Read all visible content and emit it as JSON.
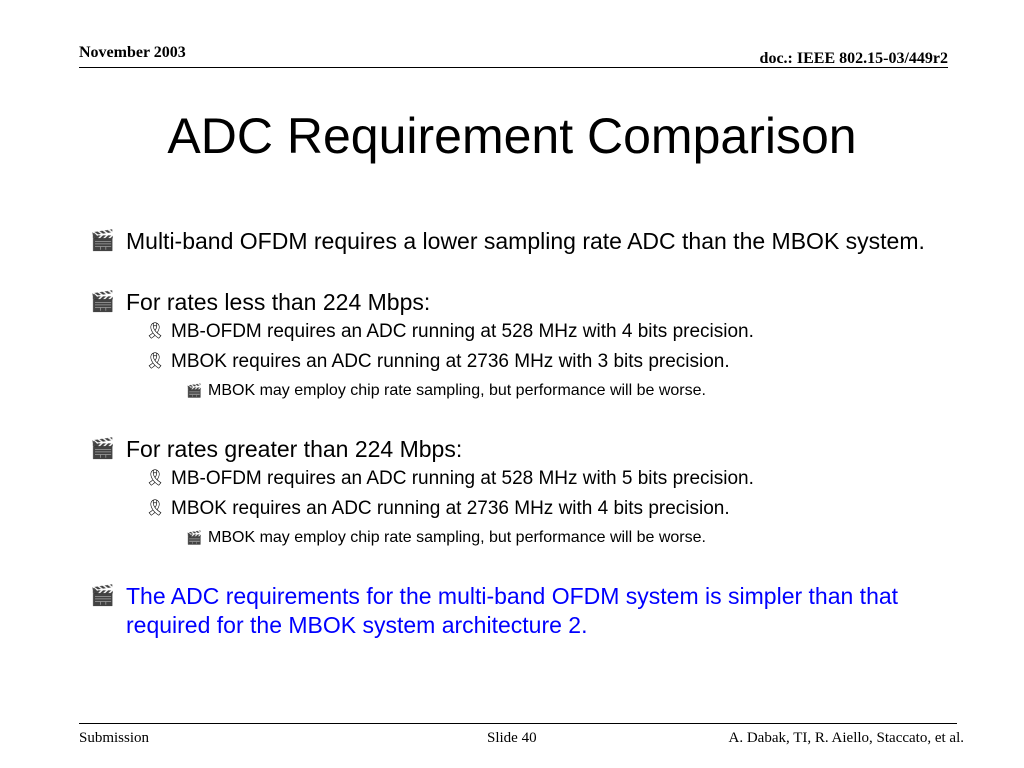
{
  "header": {
    "date": "November 2003",
    "doc": "doc.: IEEE 802.15-03/449r2"
  },
  "title": "ADC Requirement Comparison",
  "icons": {
    "level1": "clapperboard-icon",
    "level2": "ribbon-icon",
    "level3": "clapperboard-icon"
  },
  "bullets": [
    {
      "text": "Multi-band OFDM requires a lower sampling rate ADC than the MBOK system."
    },
    {
      "text": "For rates less than 224 Mbps:",
      "sub": [
        "MB-OFDM requires an ADC running at 528 MHz with 4 bits precision.",
        "MBOK requires an ADC running at 2736 MHz with 3 bits precision."
      ],
      "subsub": "MBOK may employ chip rate sampling, but performance will be worse."
    },
    {
      "text": "For rates greater than 224 Mbps:",
      "sub": [
        "MB-OFDM requires an ADC running at 528 MHz with 5 bits precision.",
        "MBOK requires an ADC running at 2736 MHz with 4 bits precision."
      ],
      "subsub": "MBOK may employ chip rate sampling, but performance will be worse."
    },
    {
      "text": "The ADC requirements for the multi-band OFDM system is simpler than that required for the MBOK system architecture 2.",
      "color": "#0000ff"
    }
  ],
  "footer": {
    "left": "Submission",
    "center": "Slide 40",
    "right": "A. Dabak, TI, R. Aiello, Staccato, et al."
  }
}
